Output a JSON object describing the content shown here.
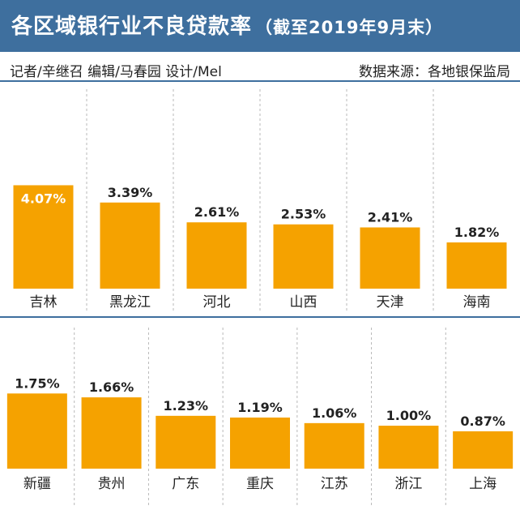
{
  "header": {
    "title": "各区域银行业不良贷款率",
    "subtitle": "（截至2019年9月末）"
  },
  "credits": {
    "left": "记者/辛继召  编辑/马春园  设计/Mel",
    "right": "数据来源：各地银保监局"
  },
  "colors": {
    "bar": "#f5a200",
    "header": "#3e6f9e",
    "top_label": "#ffffff",
    "label": "#222222"
  },
  "chart_data": [
    {
      "type": "bar",
      "categories": [
        "吉林",
        "黑龙江",
        "河北",
        "山西",
        "天津",
        "海南"
      ],
      "values": [
        4.07,
        3.39,
        2.61,
        2.53,
        2.41,
        1.82
      ],
      "value_labels": [
        "4.07%",
        "3.39%",
        "2.61%",
        "2.53%",
        "2.41%",
        "1.82%"
      ],
      "ylim": [
        0,
        4.5
      ]
    },
    {
      "type": "bar",
      "categories": [
        "新疆",
        "贵州",
        "广东",
        "重庆",
        "江苏",
        "浙江",
        "上海"
      ],
      "values": [
        1.75,
        1.66,
        1.23,
        1.19,
        1.06,
        1.0,
        0.87
      ],
      "value_labels": [
        "1.75%",
        "1.66%",
        "1.23%",
        "1.19%",
        "1.06%",
        "1.00%",
        "0.87%"
      ],
      "ylim": [
        0,
        1.85
      ]
    }
  ]
}
